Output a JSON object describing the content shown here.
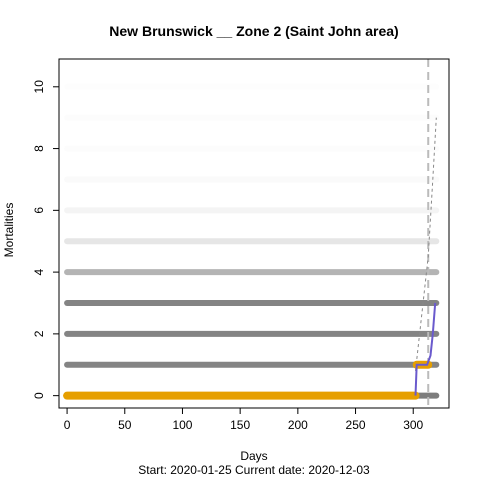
{
  "chart_data": {
    "type": "scatter",
    "title": "New Brunswick __ Zone 2 (Saint John area)",
    "xlabel": "Days",
    "ylabel": "Mortalities",
    "subtitle": "Start:  2020-01-25   Current date:  2020-12-03",
    "xlim": [
      -7,
      331
    ],
    "ylim": [
      -0.4,
      10.9
    ],
    "x_ticks": [
      0,
      50,
      100,
      150,
      200,
      250,
      300
    ],
    "y_ticks": [
      0,
      2,
      4,
      6,
      8,
      10
    ],
    "grid": false,
    "series": [
      {
        "role": "simulation-bands",
        "color": "#777777",
        "x_range": [
          0,
          320
        ],
        "levels": [
          {
            "y": 0,
            "opacity": 0.95
          },
          {
            "y": 1,
            "opacity": 0.9
          },
          {
            "y": 2,
            "opacity": 0.9
          },
          {
            "y": 3,
            "opacity": 0.9
          },
          {
            "y": 4,
            "opacity": 0.55
          },
          {
            "y": 5,
            "opacity": 0.18
          },
          {
            "y": 6,
            "opacity": 0.07
          },
          {
            "y": 7,
            "opacity": 0.03
          },
          {
            "y": 8,
            "opacity": 0.015
          },
          {
            "y": 9,
            "opacity": 0.01
          },
          {
            "y": 10,
            "opacity": 0.005
          }
        ]
      },
      {
        "role": "observed",
        "color": "#E69F00",
        "points": [
          [
            0,
            0
          ],
          [
            302,
            0
          ],
          [
            303,
            1
          ],
          [
            313,
            1
          ]
        ]
      },
      {
        "role": "trend",
        "color": "#6A5ACD",
        "points": [
          [
            302,
            0
          ],
          [
            303,
            1
          ],
          [
            312,
            1
          ],
          [
            315,
            1.3
          ],
          [
            317,
            2
          ],
          [
            319,
            3
          ]
        ]
      },
      {
        "role": "dashed-projection",
        "color": "#888888",
        "points": [
          [
            302,
            0.8
          ],
          [
            313,
            4.5
          ],
          [
            317,
            7
          ],
          [
            320,
            9
          ]
        ]
      }
    ],
    "vline": {
      "x": 313,
      "color": "#bbbbbb",
      "dashed": true
    }
  }
}
